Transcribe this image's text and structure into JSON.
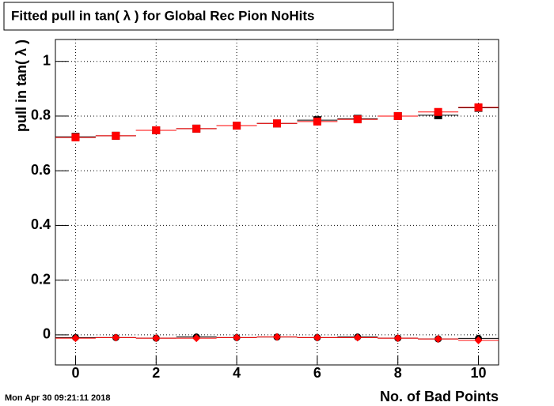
{
  "chart_data": {
    "type": "scatter",
    "title": "Fitted pull in tan( λ ) for Global Rec Pion NoHits",
    "x_label": "No. of Bad Points",
    "y_label": "pull in tan( λ )",
    "timestamp": "Mon Apr 30 09:21:11 2018",
    "x": [
      0,
      1,
      2,
      3,
      4,
      5,
      6,
      7,
      8,
      9,
      10
    ],
    "xlim": [
      -0.5,
      10.5
    ],
    "xticks": [
      0,
      2,
      4,
      6,
      8,
      10
    ],
    "ylim": [
      -0.11,
      1.08
    ],
    "yticks": [
      0,
      0.2,
      0.4,
      0.6,
      0.8,
      1
    ],
    "grid": true,
    "series": [
      {
        "color": "#000000",
        "marker": "square",
        "values": [
          0.724,
          0.728,
          0.748,
          0.754,
          0.765,
          0.773,
          0.785,
          0.79,
          0.8,
          0.803,
          0.83
        ]
      },
      {
        "color": "#ff0000",
        "marker": "square",
        "values": [
          0.722,
          0.728,
          0.748,
          0.754,
          0.765,
          0.773,
          0.78,
          0.788,
          0.8,
          0.815,
          0.832
        ]
      },
      {
        "color": "#000000",
        "marker": "circle",
        "values": [
          -0.01,
          -0.01,
          -0.012,
          -0.008,
          -0.01,
          -0.008,
          -0.01,
          -0.008,
          -0.012,
          -0.015,
          -0.013
        ]
      },
      {
        "color": "#ff0000",
        "marker": "diamond",
        "values": [
          -0.012,
          -0.01,
          -0.012,
          -0.012,
          -0.01,
          -0.008,
          -0.01,
          -0.01,
          -0.012,
          -0.015,
          -0.02
        ]
      }
    ]
  }
}
